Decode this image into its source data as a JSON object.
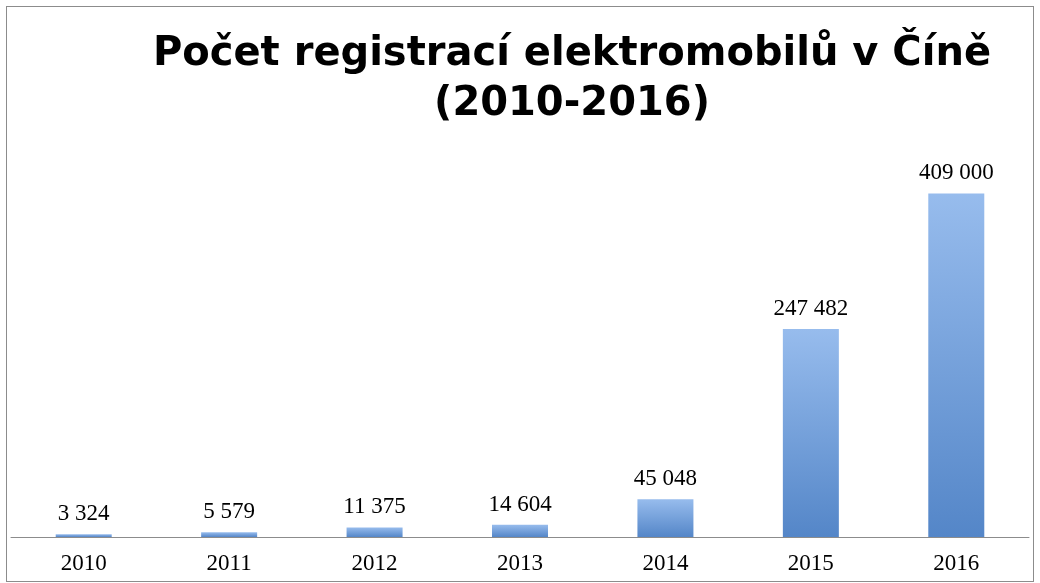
{
  "chart_data": {
    "type": "bar",
    "title": "Počet registrací elektromobilů v Číně\n(2010-2016)",
    "categories": [
      "2010",
      "2011",
      "2012",
      "2013",
      "2014",
      "2015",
      "2016"
    ],
    "values": [
      3324,
      5579,
      11375,
      14604,
      45048,
      247482,
      409000
    ],
    "value_labels": [
      "3 324",
      "5 579",
      "11 375",
      "14 604",
      "45 048",
      "247 482",
      "409 000"
    ],
    "color": "#5f98e3"
  }
}
